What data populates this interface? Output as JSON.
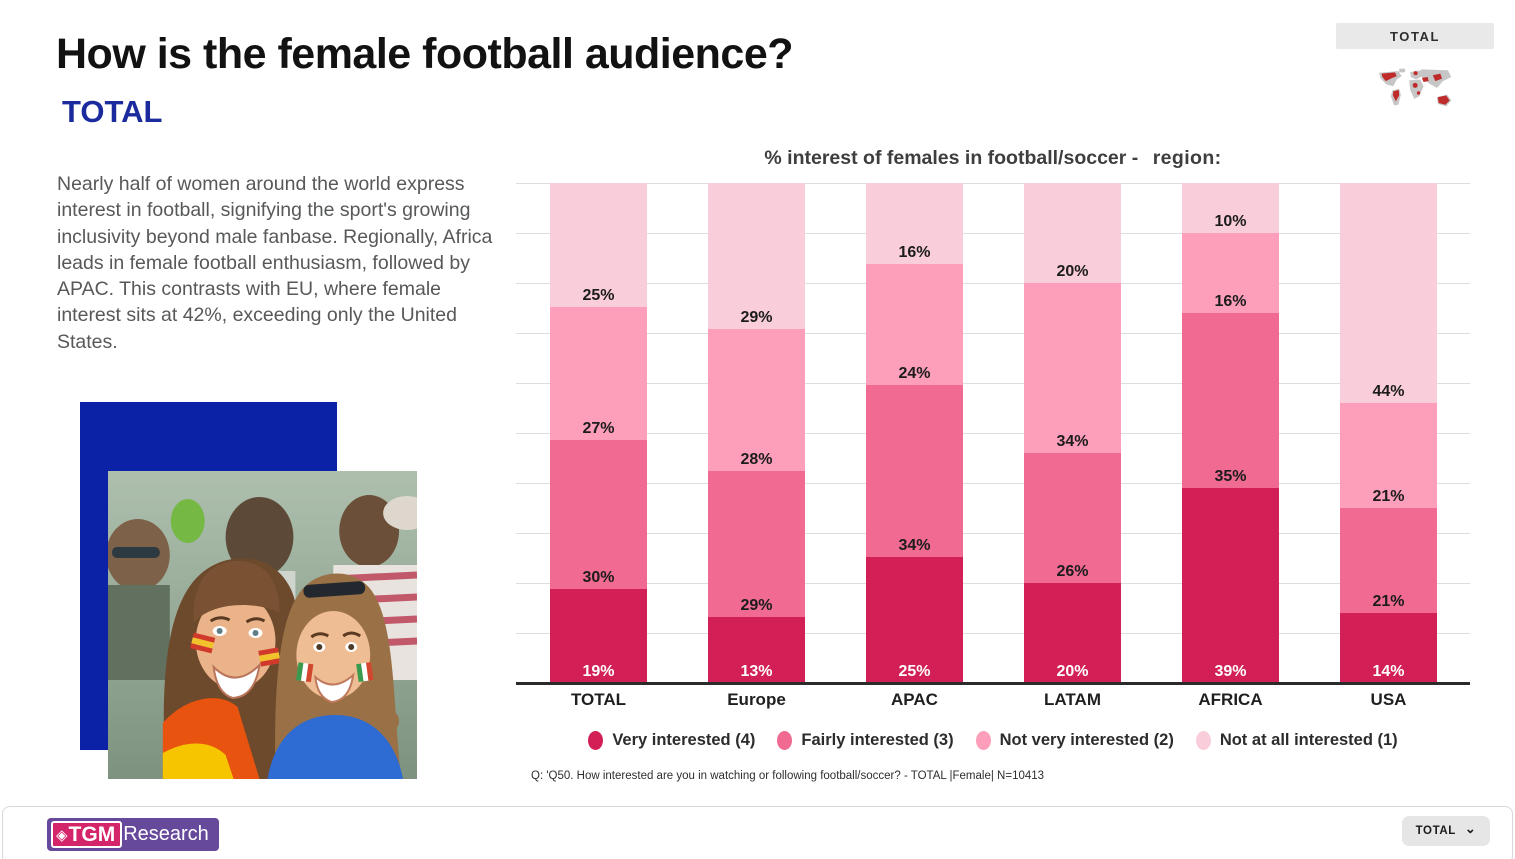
{
  "header": {
    "title": "How is the female football audience?",
    "subtitle": "TOTAL",
    "region_tab_label": "TOTAL"
  },
  "description": "Nearly half of women around the world express interest in football, signifying the sport's growing inclusivity beyond male fanbase. Regionally, Africa leads in female football enthusiasm, followed by APAC. This contrasts with EU, where female interest sits at 42%, exceeding only the United States.",
  "chart": {
    "title": "% interest of females in football/soccer - ",
    "title_region": "region:",
    "footnote": "Q: 'Q50. How interested are you in watching or following football/soccer? - TOTAL |Female| N=10413"
  },
  "chart_data": {
    "type": "bar",
    "stacked": true,
    "title": "% interest of females in football/soccer - region:",
    "categories": [
      "TOTAL",
      "Europe",
      "APAC",
      "LATAM",
      "AFRICA",
      "USA"
    ],
    "series": [
      {
        "name": "Very interested (4)",
        "color": "#d21f55",
        "values": [
          19,
          13,
          25,
          20,
          39,
          14
        ]
      },
      {
        "name": "Fairly interested (3)",
        "color": "#f06a92",
        "values": [
          30,
          29,
          34,
          26,
          35,
          21
        ]
      },
      {
        "name": "Not very interested (2)",
        "color": "#fd9ebb",
        "values": [
          27,
          28,
          24,
          34,
          16,
          21
        ]
      },
      {
        "name": "Not at all interested (1)",
        "color": "#f9ceda",
        "values": [
          25,
          29,
          16,
          20,
          10,
          44
        ]
      }
    ],
    "unit": "%",
    "ylim": [
      0,
      100
    ],
    "gridlines": "horizontal every 10%",
    "legend_position": "bottom",
    "value_labels": "inside each segment at its bottom edge; bottom series labels in white"
  },
  "footer": {
    "logo_text_bold": "TGM",
    "logo_text_regular": "Research",
    "region_dropdown_label": "TOTAL"
  },
  "icons": {
    "diamond": "◈",
    "chevron_down": "⌄"
  },
  "colors": {
    "subtitle_blue": "#1b2b9e",
    "image_block_blue": "#0c22a6",
    "logo_purple": "#67499c",
    "logo_pink": "#d4246a",
    "region_tab_bg": "#e9e9e9"
  }
}
